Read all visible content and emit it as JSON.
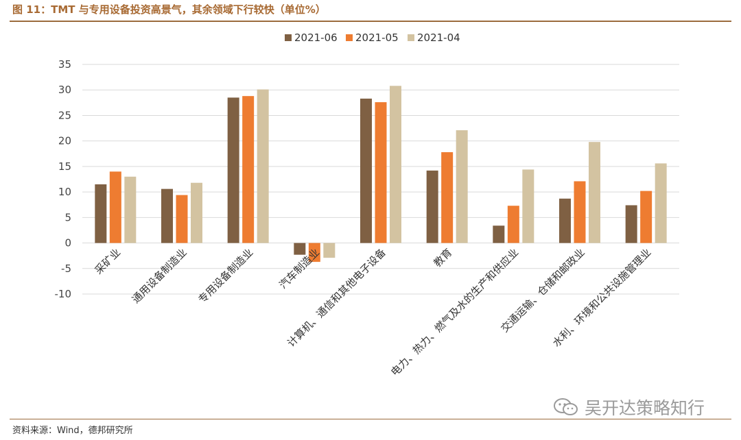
{
  "header": {
    "title": "图 11：TMT 与专用设备投资高景气，其余领域下行较快（单位%）"
  },
  "footer": {
    "source": "资料来源：Wind，德邦研究所"
  },
  "watermark": {
    "text": "吴开达策略知行",
    "icon": "wechat-icon"
  },
  "colors": {
    "s0": "#7f6043",
    "s1": "#ee7c31",
    "s2": "#d3c3a1",
    "grid": "#d9d9d9",
    "frame": "#9b6b3c"
  },
  "chart_data": {
    "type": "bar",
    "categories": [
      "采矿业",
      "通用设备制造业",
      "专用设备制造业",
      "汽车制造业",
      "计算机、通信和其他电子设备",
      "教育",
      "电力、热力、燃气及水的生产和供应业",
      "交通运输、仓储和邮政业",
      "水利、环境和公共设施管理业"
    ],
    "series": [
      {
        "name": "2021-06",
        "values": [
          11.5,
          10.6,
          28.5,
          -2.3,
          28.3,
          14.2,
          3.4,
          8.7,
          7.4
        ]
      },
      {
        "name": "2021-05",
        "values": [
          14.0,
          9.4,
          28.8,
          -3.7,
          27.6,
          17.8,
          7.3,
          12.1,
          10.2
        ]
      },
      {
        "name": "2021-04",
        "values": [
          13.0,
          11.8,
          30.1,
          -2.9,
          30.8,
          22.1,
          14.4,
          19.8,
          15.6
        ]
      }
    ],
    "yticks": [
      35,
      30,
      25,
      20,
      15,
      10,
      5,
      0,
      -5,
      -10
    ],
    "ylim": [
      -10,
      35
    ],
    "grid": true,
    "legend": "top-center"
  }
}
